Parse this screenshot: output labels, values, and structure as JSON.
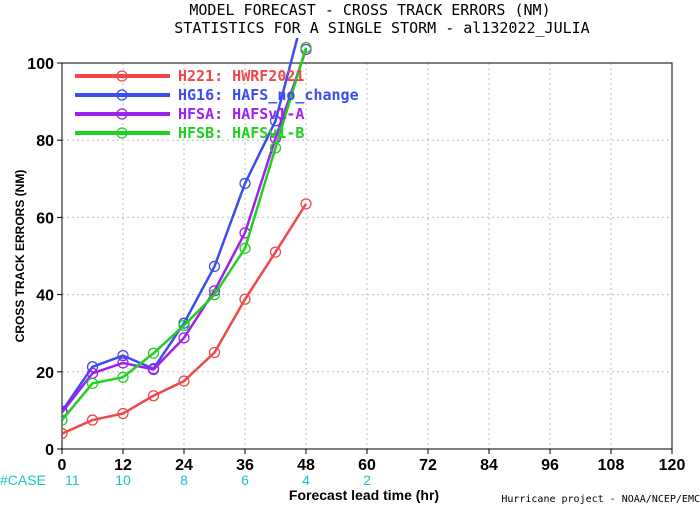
{
  "chart_data": {
    "type": "line",
    "title": "MODEL FORECAST - CROSS TRACK ERRORS (NM)",
    "subtitle": "STATISTICS FOR A SINGLE STORM - al132022_JULIA",
    "xlabel": "Forecast lead time (hr)",
    "ylabel": "CROSS TRACK ERRORS (NM)",
    "xlim": [
      0,
      120
    ],
    "ylim": [
      0,
      100
    ],
    "xticks": [
      0,
      12,
      24,
      36,
      48,
      60,
      72,
      84,
      96,
      108,
      120
    ],
    "yticks": [
      0,
      20,
      40,
      60,
      80,
      100
    ],
    "legend_position": "top-left",
    "series": [
      {
        "name": "H221: HWRF2021",
        "color": "#f04848",
        "x": [
          0,
          6,
          12,
          18,
          24,
          30,
          36,
          42,
          48
        ],
        "y": [
          4,
          7.5,
          9.2,
          13.8,
          17.6,
          25,
          38.8,
          51,
          63.5
        ]
      },
      {
        "name": "HG16: HAFS_no_change",
        "color": "#3c4cf0",
        "x": [
          0,
          6,
          12,
          18,
          24,
          30,
          36,
          42,
          48
        ],
        "y": [
          9.8,
          21.3,
          24.2,
          20.8,
          32.6,
          47.3,
          68.8,
          85,
          115
        ]
      },
      {
        "name": "HFSA: HAFSv1-A",
        "color": "#a020f0",
        "x": [
          0,
          6,
          12,
          18,
          24,
          30,
          36,
          42,
          48
        ],
        "y": [
          9.5,
          19.6,
          22.3,
          20.6,
          28.8,
          41,
          56,
          80.5,
          103.5
        ]
      },
      {
        "name": "HFSB: HAFSv1-B",
        "color": "#20d020",
        "x": [
          0,
          6,
          12,
          18,
          24,
          30,
          36,
          42,
          48
        ],
        "y": [
          7.5,
          17,
          18.6,
          24.8,
          32,
          40,
          52,
          78,
          104
        ]
      }
    ],
    "case_label": "#CASE",
    "case_counts": [
      {
        "x": 0,
        "label": "11"
      },
      {
        "x": 12,
        "label": "10"
      },
      {
        "x": 24,
        "label": "8"
      },
      {
        "x": 36,
        "label": "6"
      },
      {
        "x": 48,
        "label": "4"
      },
      {
        "x": 60,
        "label": "2"
      }
    ],
    "credit": "Hurricane project - NOAA/NCEP/EMC"
  }
}
